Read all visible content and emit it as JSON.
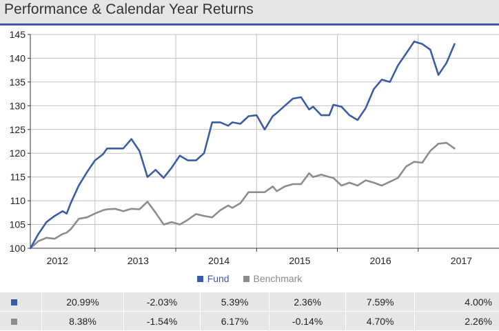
{
  "header": {
    "title": "Performance & Calendar Year Returns"
  },
  "legend": {
    "fund": "Fund",
    "benchmark": "Benchmark"
  },
  "colors": {
    "fund": "#3a5ba5",
    "benchmark": "#8c8c8c",
    "accent": "#3a5ba5"
  },
  "returns_table": {
    "rows": [
      {
        "series": "Fund",
        "values": [
          "20.99%",
          "-2.03%",
          "5.39%",
          "2.36%",
          "7.59%",
          "4.00%"
        ]
      },
      {
        "series": "Benchmark",
        "values": [
          "8.38%",
          "-1.54%",
          "6.17%",
          "-0.14%",
          "4.70%",
          "2.26%"
        ]
      }
    ]
  },
  "chart_data": {
    "type": "line",
    "title": "Performance & Calendar Year Returns",
    "xlabel": "",
    "ylabel": "",
    "ylim": [
      100,
      145
    ],
    "yticks": [
      100,
      105,
      110,
      115,
      120,
      125,
      130,
      135,
      140,
      145
    ],
    "xlim": [
      2011.7,
      2017.5
    ],
    "xticks": [
      2012,
      2013,
      2014,
      2015,
      2016,
      2017
    ],
    "year_dividers": [
      2012.5,
      2013.5,
      2014.5,
      2015.5,
      2016.5
    ],
    "grid": true,
    "legend_position": "bottom-center",
    "series": [
      {
        "name": "Fund",
        "x": [
          2011.7,
          2011.8,
          2011.9,
          2012.0,
          2012.1,
          2012.15,
          2012.2,
          2012.3,
          2012.4,
          2012.5,
          2012.6,
          2012.65,
          2012.75,
          2012.85,
          2012.95,
          2013.05,
          2013.15,
          2013.25,
          2013.35,
          2013.45,
          2013.55,
          2013.65,
          2013.75,
          2013.85,
          2013.95,
          2014.05,
          2014.15,
          2014.2,
          2014.3,
          2014.4,
          2014.5,
          2014.6,
          2014.7,
          2014.75,
          2014.85,
          2014.95,
          2015.05,
          2015.15,
          2015.2,
          2015.3,
          2015.4,
          2015.45,
          2015.55,
          2015.65,
          2015.75,
          2015.85,
          2015.95,
          2016.05,
          2016.15,
          2016.25,
          2016.35,
          2016.45,
          2016.55,
          2016.65,
          2016.75,
          2016.85,
          2016.95
        ],
        "values": [
          100,
          103,
          105.5,
          106.8,
          107.8,
          107.3,
          109.5,
          113.2,
          116.0,
          118.5,
          119.8,
          121.0,
          121.0,
          121.0,
          123.0,
          120.5,
          115.0,
          116.5,
          114.8,
          117.0,
          119.5,
          118.5,
          118.5,
          120.0,
          126.5,
          126.5,
          125.8,
          126.5,
          126.2,
          127.8,
          128.0,
          125.0,
          127.8,
          128.5,
          130.0,
          131.5,
          131.8,
          129.2,
          129.8,
          128.0,
          128.0,
          130.2,
          129.8,
          128.0,
          127.0,
          129.5,
          133.5,
          135.5,
          135.0,
          138.5,
          141.0,
          143.5,
          143.0,
          141.8,
          136.5,
          139.0,
          143.0
        ]
      },
      {
        "name": "Benchmark",
        "x": [
          2011.7,
          2011.8,
          2011.9,
          2012.0,
          2012.1,
          2012.15,
          2012.2,
          2012.3,
          2012.4,
          2012.5,
          2012.6,
          2012.65,
          2012.75,
          2012.85,
          2012.95,
          2013.05,
          2013.15,
          2013.25,
          2013.35,
          2013.45,
          2013.55,
          2013.65,
          2013.75,
          2013.85,
          2013.95,
          2014.05,
          2014.15,
          2014.2,
          2014.3,
          2014.4,
          2014.5,
          2014.6,
          2014.7,
          2014.75,
          2014.85,
          2014.95,
          2015.05,
          2015.15,
          2015.2,
          2015.3,
          2015.4,
          2015.45,
          2015.55,
          2015.65,
          2015.75,
          2015.85,
          2015.95,
          2016.05,
          2016.15,
          2016.25,
          2016.35,
          2016.45,
          2016.55,
          2016.65,
          2016.75,
          2016.85,
          2016.95
        ],
        "values": [
          100,
          101.5,
          102.2,
          102.0,
          103.0,
          103.3,
          104.0,
          106.2,
          106.5,
          107.3,
          108.0,
          108.2,
          108.3,
          107.8,
          108.3,
          108.2,
          109.8,
          107.5,
          105.0,
          105.5,
          105.0,
          106.0,
          107.2,
          106.8,
          106.5,
          108.0,
          109.0,
          108.5,
          109.5,
          111.8,
          111.8,
          111.8,
          113.0,
          112.0,
          113.0,
          113.5,
          113.5,
          115.8,
          115.0,
          115.5,
          115.0,
          114.8,
          113.2,
          113.8,
          113.2,
          114.3,
          113.8,
          113.2,
          114.0,
          114.8,
          117.2,
          118.2,
          118.0,
          120.5,
          122.0,
          122.2,
          121.0
        ]
      }
    ]
  }
}
